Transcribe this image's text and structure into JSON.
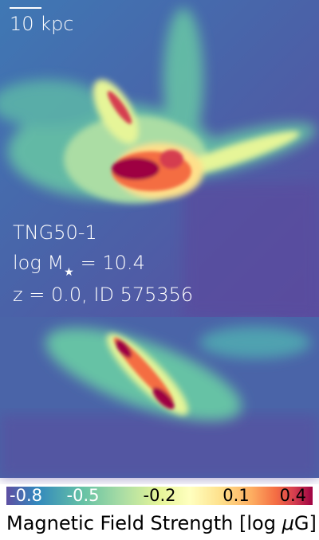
{
  "scale_bar": {
    "label": "10 kpc"
  },
  "annotations": {
    "simulation": "TNG50-1",
    "mass_label": "log M",
    "mass_subscript": "★",
    "mass_value": "= 10.4",
    "redshift_id": "z = 0.0, ID 575356"
  },
  "colorbar": {
    "range": [
      -0.8,
      0.4
    ],
    "ticks": [
      -0.8,
      -0.5,
      -0.2,
      0.1,
      0.4
    ],
    "label_start": "Magnetic Field Strength [log ",
    "label_italic": "μ",
    "label_end": "G]"
  }
}
